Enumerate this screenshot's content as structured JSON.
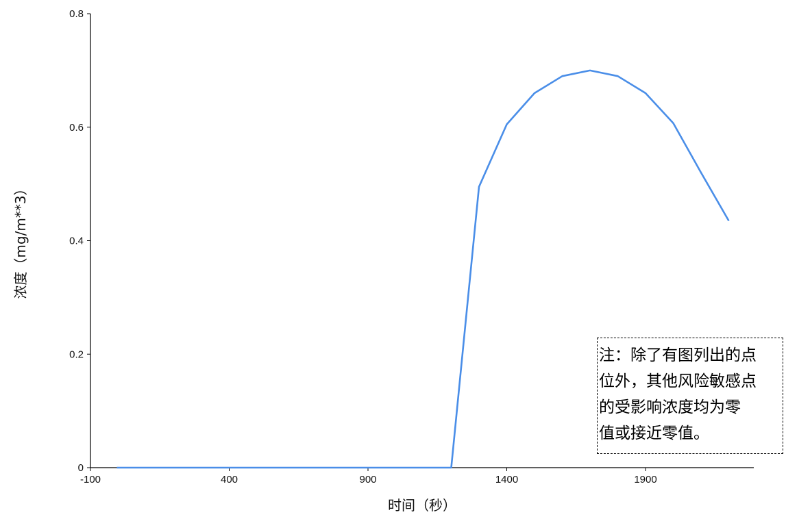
{
  "chart_data": {
    "type": "line",
    "title": "",
    "xlabel": "时间（秒）",
    "ylabel": "浓度（mg/m**3）",
    "xlim": [
      -100,
      2200
    ],
    "ylim": [
      0,
      0.8
    ],
    "x_ticks": [
      "-100",
      "400",
      "900",
      "1400",
      "1900"
    ],
    "y_ticks": [
      "0",
      "0.2",
      "0.4",
      "0.6",
      "0.8"
    ],
    "grid": false,
    "series": [
      {
        "color": "#4a8ee8",
        "points": [
          {
            "x": -5,
            "y": 0
          },
          {
            "x": 1200,
            "y": 0
          },
          {
            "x": 1300,
            "y": 0.495
          },
          {
            "x": 1400,
            "y": 0.605
          },
          {
            "x": 1500,
            "y": 0.66
          },
          {
            "x": 1600,
            "y": 0.69
          },
          {
            "x": 1700,
            "y": 0.7
          },
          {
            "x": 1800,
            "y": 0.69
          },
          {
            "x": 1900,
            "y": 0.66
          },
          {
            "x": 2000,
            "y": 0.607
          },
          {
            "x": 2100,
            "y": 0.52
          },
          {
            "x": 2200,
            "y": 0.435
          }
        ]
      }
    ],
    "annotation": "注：除了有图列出的点\n位外，其他风险敏感点\n的受影响浓度均为零\n值或接近零值。"
  }
}
